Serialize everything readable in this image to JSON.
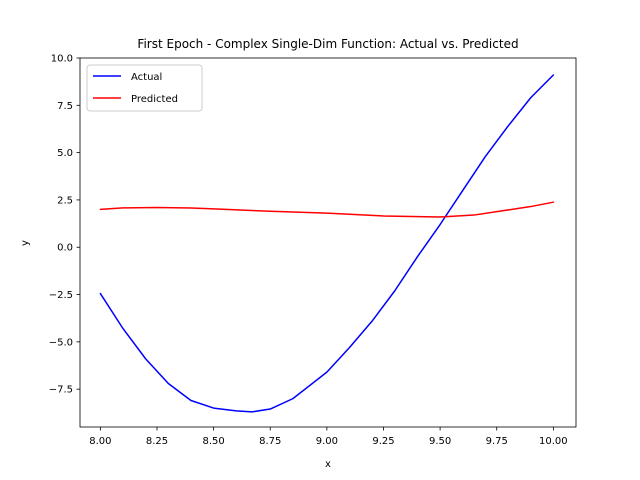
{
  "chart_data": {
    "type": "line",
    "title": "First Epoch - Complex Single-Dim Function: Actual vs. Predicted",
    "xlabel": "x",
    "ylabel": "y",
    "xlim": [
      7.91,
      10.1
    ],
    "ylim": [
      -9.5,
      10.0
    ],
    "xticks": [
      8.0,
      8.25,
      8.5,
      8.75,
      9.0,
      9.25,
      9.5,
      9.75,
      10.0
    ],
    "xtick_labels": [
      "8.00",
      "8.25",
      "8.50",
      "8.75",
      "9.00",
      "9.25",
      "9.50",
      "9.75",
      "10.00"
    ],
    "yticks": [
      -7.5,
      -5.0,
      -2.5,
      0.0,
      2.5,
      5.0,
      7.5,
      10.0
    ],
    "ytick_labels": [
      "−7.5",
      "−5.0",
      "−2.5",
      "0.0",
      "2.5",
      "5.0",
      "7.5",
      "10.0"
    ],
    "grid": false,
    "legend_position": "top-left",
    "series": [
      {
        "name": "Actual",
        "color": "#0000ff",
        "x": [
          8.0,
          8.1,
          8.2,
          8.3,
          8.4,
          8.5,
          8.6,
          8.67,
          8.75,
          8.85,
          9.0,
          9.1,
          9.2,
          9.3,
          9.4,
          9.5,
          9.6,
          9.7,
          9.8,
          9.9,
          10.0
        ],
        "y": [
          -2.45,
          -4.3,
          -5.9,
          -7.2,
          -8.1,
          -8.5,
          -8.65,
          -8.7,
          -8.55,
          -8.0,
          -6.6,
          -5.3,
          -3.9,
          -2.3,
          -0.5,
          1.2,
          3.0,
          4.8,
          6.4,
          7.9,
          9.1
        ]
      },
      {
        "name": "Predicted",
        "color": "#ff0000",
        "x": [
          8.0,
          8.1,
          8.25,
          8.4,
          8.5,
          8.75,
          9.0,
          9.25,
          9.5,
          9.65,
          9.75,
          9.9,
          10.0
        ],
        "y": [
          2.0,
          2.08,
          2.1,
          2.07,
          2.03,
          1.9,
          1.8,
          1.65,
          1.6,
          1.7,
          1.88,
          2.15,
          2.38
        ]
      }
    ]
  }
}
